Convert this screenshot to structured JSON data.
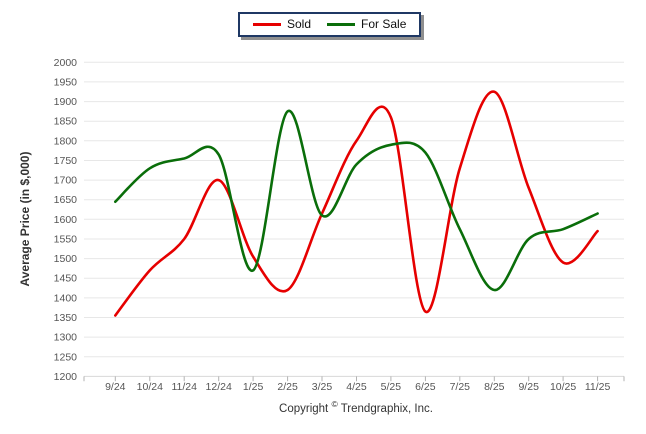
{
  "legend": {
    "items": [
      {
        "label": "Sold",
        "color": "#e60000"
      },
      {
        "label": "For Sale",
        "color": "#0a6e0a"
      }
    ]
  },
  "footer": {
    "copyright_prefix": "Copyright",
    "copyright_symbol": "©",
    "copyright_company": "Trendgraphix, Inc."
  },
  "colors": {
    "sold_line": "#e60000",
    "for_sale_line": "#0a6e0a",
    "legend_border": "#1f3864",
    "gridline": "#e7e7e7",
    "axis_line": "#d8d8d8",
    "tick_mark": "#b3b3b3",
    "tick_text": "#555555"
  },
  "chart_data": {
    "type": "line",
    "title": "",
    "xlabel": "",
    "ylabel": "Average Price (in $,000)",
    "categories": [
      "9/24",
      "10/24",
      "11/24",
      "12/24",
      "1/25",
      "2/25",
      "3/25",
      "4/25",
      "5/25",
      "6/25",
      "7/25",
      "8/25",
      "9/25",
      "10/25",
      "11/25"
    ],
    "series": [
      {
        "name": "Sold",
        "color": "#e60000",
        "values": [
          1355,
          1470,
          1550,
          1700,
          1505,
          1420,
          1615,
          1800,
          1860,
          1365,
          1730,
          1925,
          1680,
          1490,
          1570
        ]
      },
      {
        "name": "For Sale",
        "color": "#0a6e0a",
        "values": [
          1645,
          1730,
          1755,
          1765,
          1470,
          1875,
          1610,
          1740,
          1790,
          1770,
          1575,
          1420,
          1550,
          1575,
          1615
        ]
      }
    ],
    "ylim": [
      1200,
      2000
    ],
    "ytick_step": 50,
    "y_ticks": [
      2000,
      1950,
      1900,
      1850,
      1800,
      1750,
      1700,
      1650,
      1600,
      1550,
      1500,
      1450,
      1400,
      1350,
      1300,
      1250,
      1200
    ],
    "grid": "horizontal",
    "legend_position": "top-center",
    "curve": "smooth-spline"
  }
}
